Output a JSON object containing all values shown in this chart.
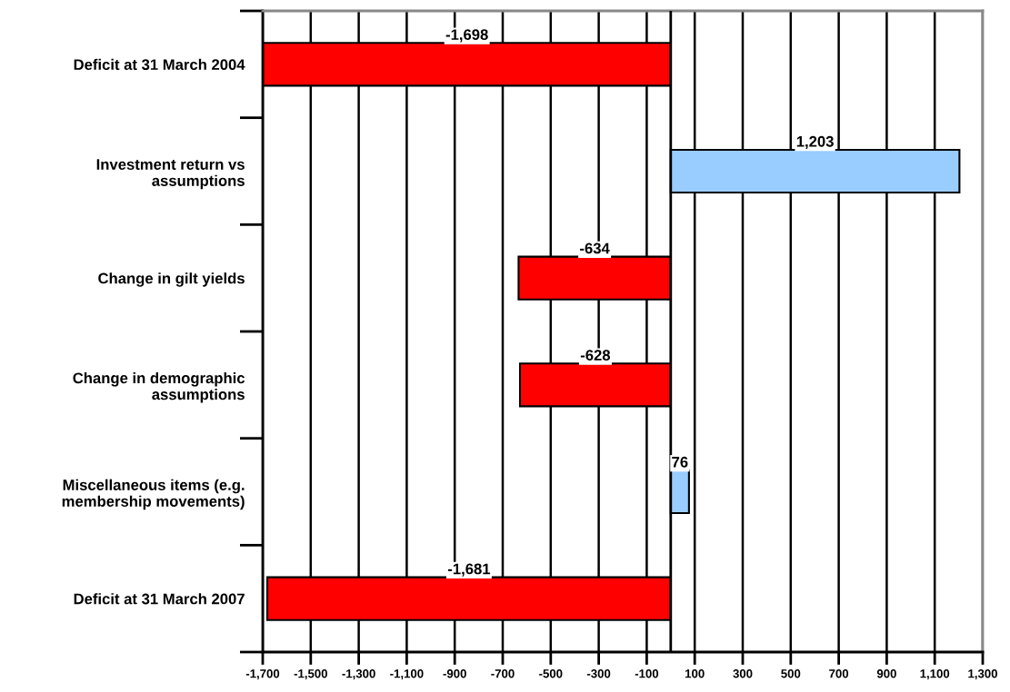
{
  "chart_data": {
    "type": "bar",
    "orientation": "horizontal",
    "categories": [
      "Deficit at 31 March 2004",
      "Investment return vs\nassumptions",
      "Change in gilt yields",
      "Change in demographic\nassumptions",
      "Miscellaneous items (e.g.\nmembership movements)",
      "Deficit at 31 March 2007"
    ],
    "values": [
      -1698,
      1203,
      -634,
      -628,
      76,
      -1681
    ],
    "colors": [
      "#ff0000",
      "#99ccff",
      "#ff0000",
      "#ff0000",
      "#99ccff",
      "#ff0000"
    ],
    "value_labels": [
      "-1,698",
      "1,203",
      "-634",
      "-628",
      "76",
      "-1,681"
    ],
    "xlim": [
      -1700,
      1300
    ],
    "xticks": [
      {
        "value": -1700,
        "label": "-1,700"
      },
      {
        "value": -1500,
        "label": "-1,500"
      },
      {
        "value": -1300,
        "label": "-1,300"
      },
      {
        "value": -1100,
        "label": "-1,100"
      },
      -900,
      -700,
      -500,
      -300,
      -100,
      100,
      300,
      500,
      700,
      900,
      {
        "value": 1100,
        "label": "1,100"
      },
      {
        "value": 1300,
        "label": "1,300"
      }
    ],
    "grid": "x"
  }
}
